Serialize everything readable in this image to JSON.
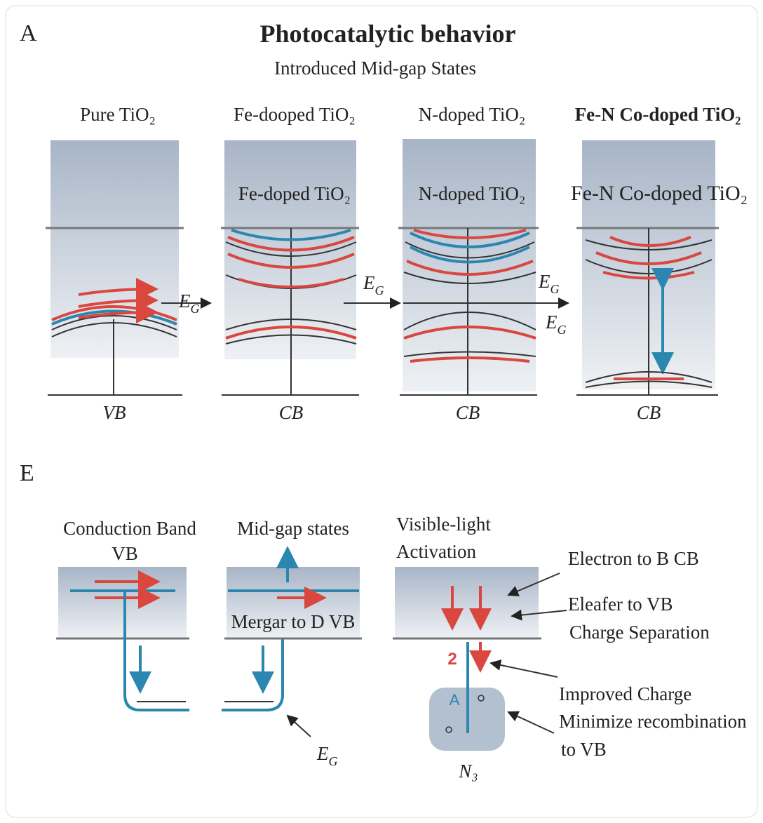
{
  "panel_a": {
    "label": "A",
    "title": "Photocatalytic behavior",
    "subtitle": "Introduced Mid-gap States",
    "columns": [
      {
        "title": "Pure TiO₂",
        "band": "VB"
      },
      {
        "title": "Fe-dooped TiO₂",
        "inner": "Fe-doped TiO₂",
        "band": "CB"
      },
      {
        "title": "N-doped TiO₂",
        "inner": "N-doped TiO₂",
        "band": "CB"
      },
      {
        "title": "Fe-N Co-doped TiO₂",
        "inner": "Fe-N Co-doped TiO₂",
        "band": "CB"
      }
    ],
    "gap_labels": [
      {
        "main": "E",
        "sub": "G"
      },
      {
        "main": "E",
        "sub": "G"
      },
      {
        "main": "E",
        "sub": "G"
      },
      {
        "main": "E",
        "sub": "G"
      }
    ]
  },
  "panel_e": {
    "label": "E",
    "left": {
      "title": "Conduction Band",
      "subtitle": "VB"
    },
    "middle": {
      "title": "Mid-gap states",
      "inner": "Mergar to D VB"
    },
    "gap_label": {
      "main": "E",
      "sub": "G"
    },
    "right": {
      "title_lines": [
        "Visible-light",
        "Activation"
      ],
      "step": "2",
      "site": "A",
      "site_label": "N₃",
      "notes": [
        "Electron to B CB",
        "Eleafer to VB",
        "Charge Separation",
        "Improved Charge",
        "Minimize recombination",
        "to VB"
      ]
    }
  }
}
